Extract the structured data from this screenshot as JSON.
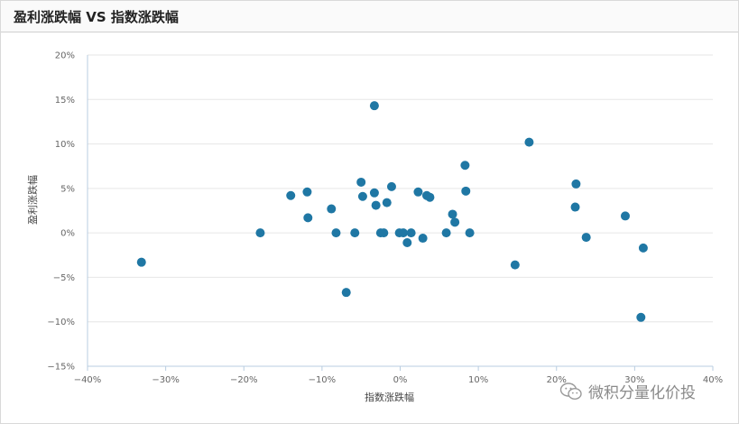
{
  "header": {
    "title": "盈利涨跌幅 VS 指数涨跌幅"
  },
  "watermark": {
    "text": "微积分量化价投",
    "icon": "wechat-icon"
  },
  "colors": {
    "point": "#1f77a4",
    "grid": "#e6e6e6",
    "axis": "#b9cde0"
  },
  "chart_data": {
    "type": "scatter",
    "title": "盈利涨跌幅 VS 指数涨跌幅",
    "xlabel": "指数涨跌幅",
    "ylabel": "盈利涨跌幅",
    "xlim": [
      -40,
      40
    ],
    "ylim": [
      -15,
      20
    ],
    "xticks": [
      "−40%",
      "−30%",
      "−20%",
      "−10%",
      "0%",
      "10%",
      "20%",
      "30%",
      "40%"
    ],
    "yticks": [
      "−15%",
      "−10%",
      "−5%",
      "0%",
      "5%",
      "10%",
      "15%",
      "20%"
    ],
    "grid": "horizontal",
    "points": [
      {
        "x": -33.1,
        "y": -3.3
      },
      {
        "x": -17.9,
        "y": 0.0
      },
      {
        "x": -14.0,
        "y": 4.2
      },
      {
        "x": -11.9,
        "y": 4.6
      },
      {
        "x": -11.8,
        "y": 1.7
      },
      {
        "x": -8.8,
        "y": 2.7
      },
      {
        "x": -8.2,
        "y": 0.0
      },
      {
        "x": -6.9,
        "y": -6.7
      },
      {
        "x": -5.8,
        "y": 0.0
      },
      {
        "x": -5.0,
        "y": 5.7
      },
      {
        "x": -4.8,
        "y": 4.1
      },
      {
        "x": -3.3,
        "y": 14.3
      },
      {
        "x": -3.3,
        "y": 4.5
      },
      {
        "x": -3.1,
        "y": 3.1
      },
      {
        "x": -2.5,
        "y": 0.0
      },
      {
        "x": -2.1,
        "y": 0.0
      },
      {
        "x": -1.7,
        "y": 3.4
      },
      {
        "x": -1.1,
        "y": 5.2
      },
      {
        "x": -0.1,
        "y": 0.0
      },
      {
        "x": 0.4,
        "y": 0.0
      },
      {
        "x": 0.9,
        "y": -1.1
      },
      {
        "x": 1.4,
        "y": 0.0
      },
      {
        "x": 2.3,
        "y": 4.6
      },
      {
        "x": 2.9,
        "y": -0.6
      },
      {
        "x": 3.4,
        "y": 4.2
      },
      {
        "x": 3.8,
        "y": 4.0
      },
      {
        "x": 5.9,
        "y": 0.0
      },
      {
        "x": 6.7,
        "y": 2.1
      },
      {
        "x": 7.0,
        "y": 1.2
      },
      {
        "x": 8.3,
        "y": 7.6
      },
      {
        "x": 8.4,
        "y": 4.7
      },
      {
        "x": 8.9,
        "y": 0.0
      },
      {
        "x": 14.7,
        "y": -3.6
      },
      {
        "x": 16.5,
        "y": 10.2
      },
      {
        "x": 22.4,
        "y": 2.9
      },
      {
        "x": 22.5,
        "y": 5.5
      },
      {
        "x": 23.8,
        "y": -0.5
      },
      {
        "x": 28.8,
        "y": 1.9
      },
      {
        "x": 30.8,
        "y": -9.5
      },
      {
        "x": 31.1,
        "y": -1.7
      }
    ]
  }
}
